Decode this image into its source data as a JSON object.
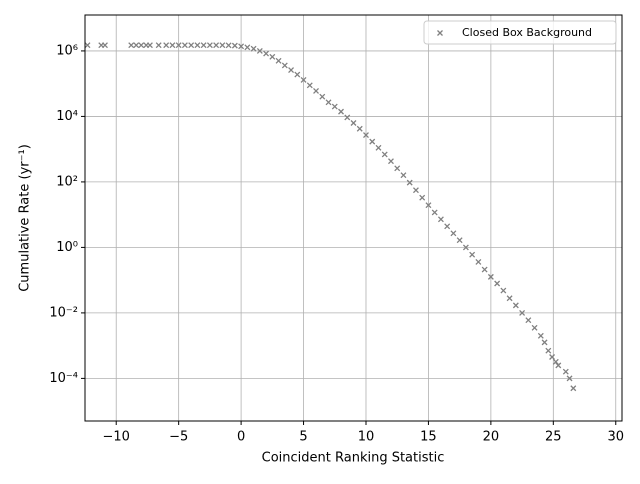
{
  "chart_data": {
    "type": "scatter",
    "xlabel": "Coincident Ranking Statistic",
    "ylabel": "Cumulative Rate (yr⁻¹)",
    "log_y": true,
    "grid": true,
    "legend": "upper right",
    "xlim": [
      -12.5,
      30.5
    ],
    "xticks": [
      {
        "value": -10,
        "label": "−10"
      },
      {
        "value": -5,
        "label": "−5"
      },
      0,
      5,
      10,
      15,
      20,
      25,
      30
    ],
    "ylim": [
      5e-06,
      12500000
    ],
    "yticks": [
      {
        "value": 0.0001,
        "label": "10⁻⁴"
      },
      {
        "value": 0.01,
        "label": "10⁻²"
      },
      {
        "value": 1,
        "label": "10⁰"
      },
      {
        "value": 100,
        "label": "10²"
      },
      {
        "value": 10000,
        "label": "10⁴"
      },
      {
        "value": 1000000,
        "label": "10⁶"
      }
    ],
    "series": [
      {
        "name": "Closed Box Background",
        "color": "#808080",
        "x": [
          -12.3,
          -11.2,
          -10.9,
          -8.8,
          -8.4,
          -8.0,
          -7.6,
          -7.3,
          -6.6,
          -6,
          -5.5,
          -5,
          -4.5,
          -4,
          -3.5,
          -3,
          -2.5,
          -2,
          -1.5,
          -1,
          -0.5,
          0,
          0.5,
          1,
          1.5,
          2,
          2.5,
          3,
          3.5,
          4,
          4.5,
          5,
          5.5,
          6,
          6.5,
          7,
          7.5,
          8,
          8.5,
          9,
          9.5,
          10,
          10.5,
          11,
          11.5,
          12,
          12.5,
          13,
          13.5,
          14,
          14.5,
          15,
          15.5,
          16,
          16.5,
          17,
          17.5,
          18,
          18.5,
          19,
          19.5,
          20,
          20.5,
          21,
          21.5,
          22,
          22.5,
          23,
          23.5,
          24,
          24.3,
          24.6,
          24.9,
          25.2,
          25.4,
          26,
          26.3,
          26.6
        ],
        "values": [
          1500000,
          1500000,
          1500000,
          1500000,
          1500000,
          1500000,
          1500000,
          1500000,
          1500000,
          1500000,
          1500000,
          1500000,
          1500000,
          1500000,
          1500000,
          1500000,
          1500000,
          1500000,
          1500000,
          1480000,
          1450000,
          1380000,
          1290000,
          1170000,
          1000000,
          830000,
          660000,
          500000,
          360000,
          260000,
          190000,
          130000,
          89000,
          60000,
          40000,
          27000,
          20000,
          14000,
          9300,
          6300,
          4200,
          2700,
          1700,
          1100,
          690,
          430,
          260,
          160,
          95,
          56,
          33,
          19.5,
          11.7,
          7.2,
          4.4,
          2.7,
          1.66,
          1,
          0.6,
          0.36,
          0.21,
          0.126,
          0.079,
          0.048,
          0.028,
          0.017,
          0.01,
          0.006,
          0.0035,
          0.002,
          0.00126,
          0.0007,
          0.00045,
          0.00032,
          0.00025,
          0.00016,
          0.0001,
          5e-05
        ]
      }
    ]
  }
}
